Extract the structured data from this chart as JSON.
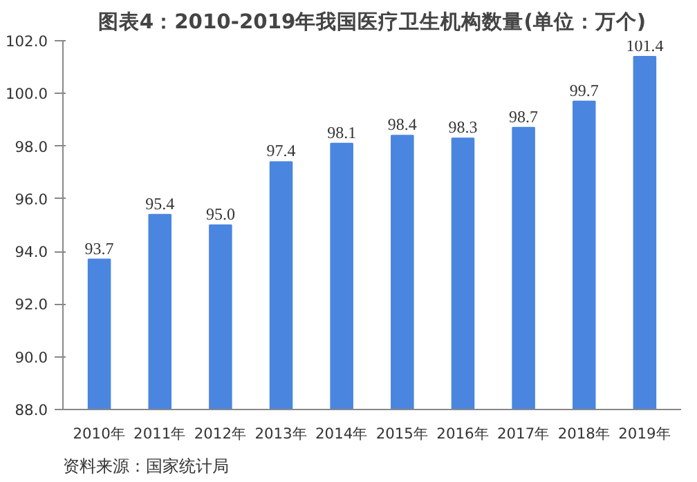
{
  "chart_data": {
    "type": "bar",
    "title": "图表4：2010-2019年我国医疗卫生机构数量(单位：万个)",
    "categories": [
      "2010年",
      "2011年",
      "2012年",
      "2013年",
      "2014年",
      "2015年",
      "2016年",
      "2017年",
      "2018年",
      "2019年"
    ],
    "values": [
      93.7,
      95.4,
      95.0,
      97.4,
      98.1,
      98.4,
      98.3,
      98.7,
      99.7,
      101.4
    ],
    "color": "#4a86e0",
    "ylim": [
      88,
      102
    ],
    "yticks": [
      {
        "value": 88,
        "label": "88.0"
      },
      {
        "value": 90,
        "label": "90.0"
      },
      {
        "value": 92,
        "label": "92.0"
      },
      {
        "value": 94,
        "label": "94.0"
      },
      {
        "value": 96,
        "label": "96.0"
      },
      {
        "value": 98,
        "label": "98.0"
      },
      {
        "value": 100,
        "label": "100.0"
      },
      {
        "value": 102,
        "label": "102.0"
      }
    ],
    "value_labels": [
      "93.7",
      "95.4",
      "95.0",
      "97.4",
      "98.1",
      "98.4",
      "98.3",
      "98.7",
      "99.7",
      "101.4"
    ],
    "grid": false,
    "annotations": [
      "资料来源：国家统计局"
    ]
  }
}
